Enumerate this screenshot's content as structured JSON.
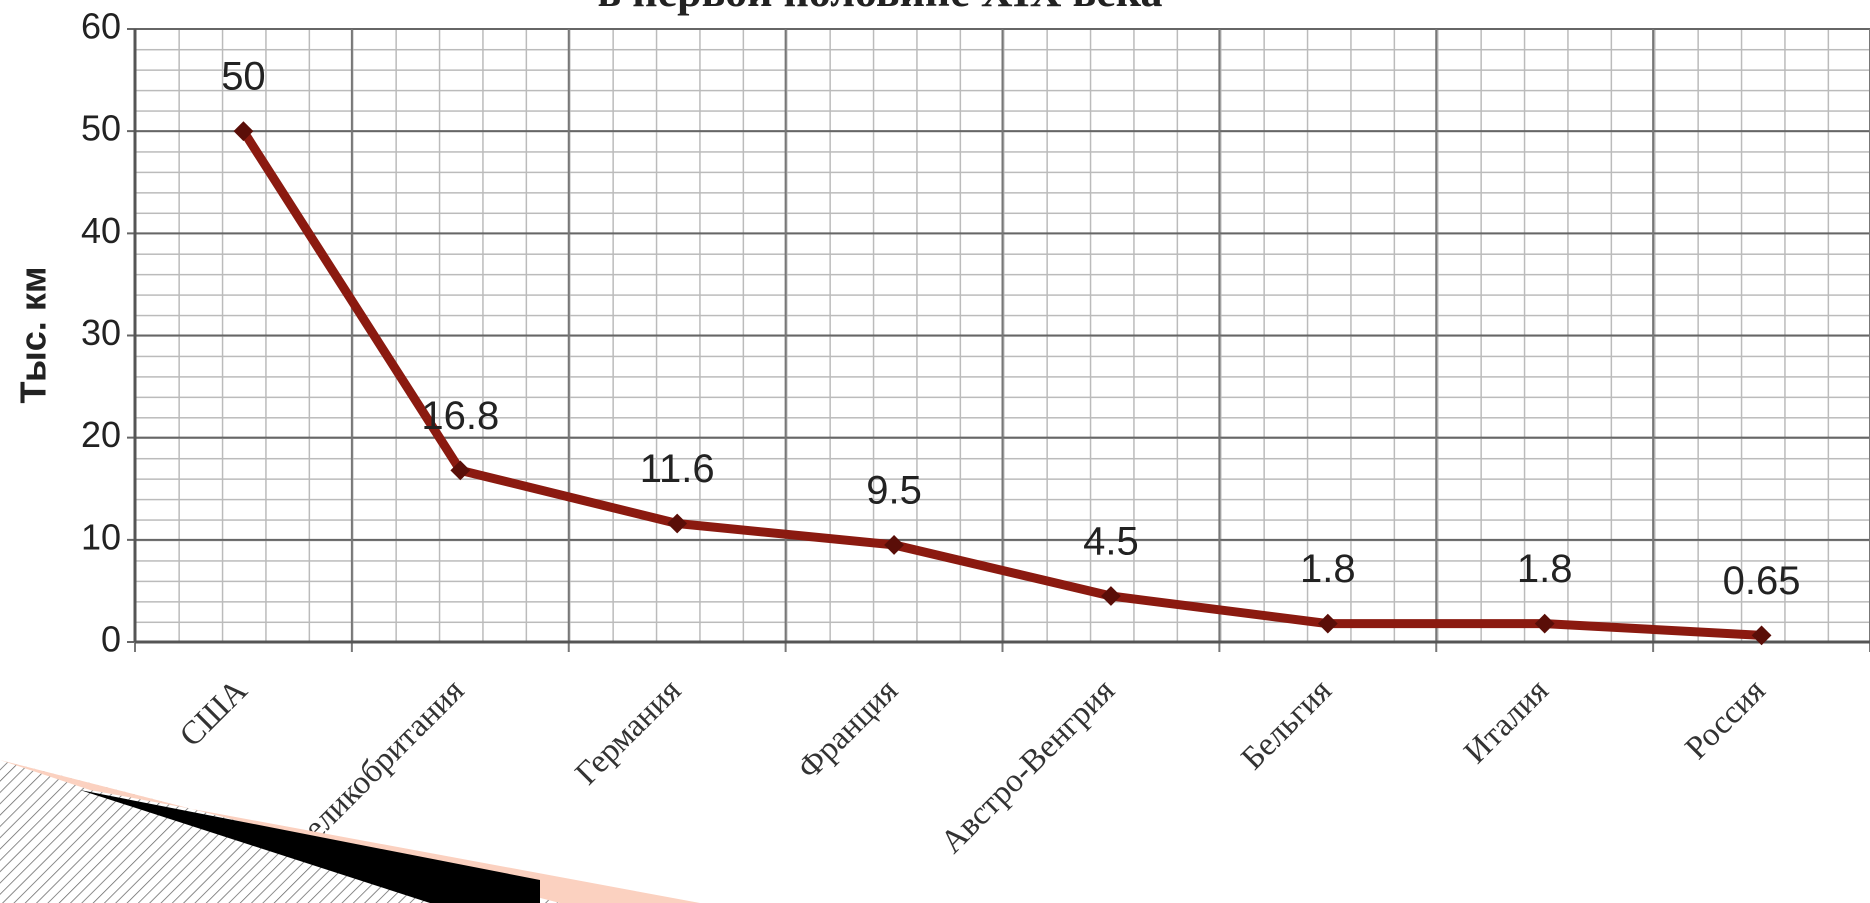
{
  "chart_data": {
    "type": "line",
    "title": "в первой половине XIX века",
    "y_label": "Тыс. км",
    "categories": [
      "США",
      "Великобритания",
      "Германия",
      "Франция",
      "Австро-Венгрия",
      "Бельгия",
      "Италия",
      "Россия"
    ],
    "series": [
      {
        "name": "Тыс. км",
        "color": "#8b1a10",
        "values": [
          50,
          16.8,
          11.6,
          9.5,
          4.5,
          1.8,
          1.8,
          0.65
        ]
      }
    ],
    "ylim": [
      0,
      60
    ],
    "yticks": [
      0,
      10,
      20,
      30,
      40,
      50,
      60
    ],
    "grid": true
  }
}
